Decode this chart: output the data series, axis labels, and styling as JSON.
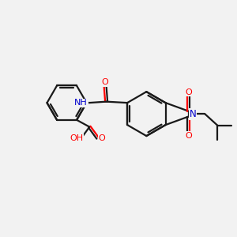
{
  "background_color": "#f2f2f2",
  "bond_color": "#1a1a1a",
  "bond_width": 1.6,
  "atom_colors": {
    "O": "#ff0000",
    "N": "#0000cc",
    "C": "#1a1a1a",
    "H": "#1a1a1a"
  },
  "figsize": [
    3.0,
    3.0
  ],
  "dpi": 100,
  "xlim": [
    0,
    10
  ],
  "ylim": [
    0,
    10
  ]
}
